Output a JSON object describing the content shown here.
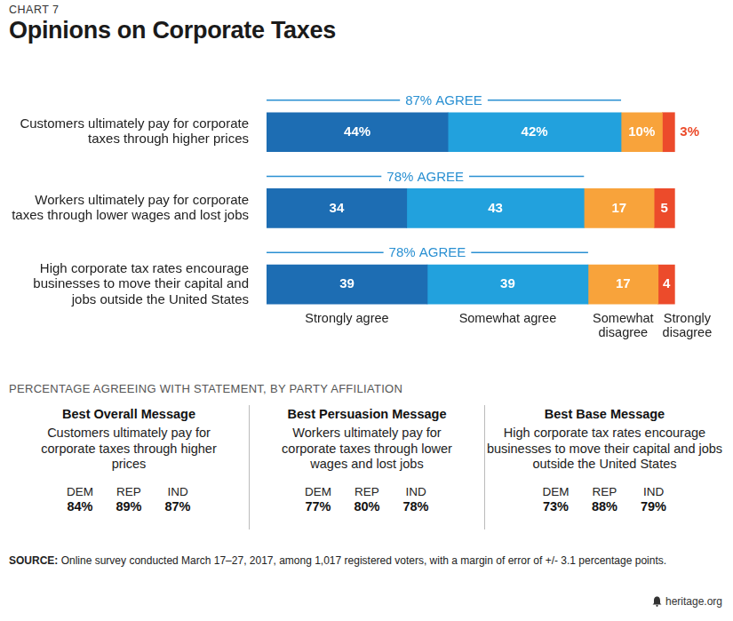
{
  "header": {
    "label": "CHART 7"
  },
  "chart_data": {
    "type": "bar",
    "orientation": "horizontal",
    "stacked": true,
    "title": "Opinions on Corporate Taxes",
    "categories": [
      "Customers ultimately pay for corporate taxes through higher prices",
      "Workers ultimately pay for corporate taxes through lower wages and lost jobs",
      "High corporate tax rates encourage businesses to move their capital and jobs outside the United States"
    ],
    "series": [
      {
        "name": "Strongly agree",
        "color": "#1d6db3",
        "values": [
          44,
          34,
          39
        ],
        "value_labels": [
          "44%",
          "34",
          "39"
        ]
      },
      {
        "name": "Somewhat agree",
        "color": "#22a1dd",
        "values": [
          42,
          43,
          39
        ],
        "value_labels": [
          "42%",
          "43",
          "39"
        ]
      },
      {
        "name": "Somewhat disagree",
        "color": "#f8a33b",
        "values": [
          10,
          17,
          17
        ],
        "value_labels": [
          "10%",
          "17",
          "17"
        ]
      },
      {
        "name": "Strongly disagree",
        "color": "#ec4b2b",
        "values": [
          3,
          5,
          4
        ],
        "value_labels": [
          "3%",
          "5",
          "4"
        ]
      }
    ],
    "annotations": [
      "87% AGREE",
      "78% AGREE",
      "78% AGREE"
    ],
    "xlim": [
      0,
      100
    ],
    "tick_labels": "y",
    "grid": false,
    "data_labels": true
  },
  "party_breakdown": {
    "title": "PERCENTAGE AGREEING WITH STATEMENT, BY PARTY AFFILIATION",
    "panels": [
      {
        "heading": "Best Overall Message",
        "statement": "Customers ultimately pay for corporate taxes through higher prices",
        "parties": [
          "DEM",
          "REP",
          "IND"
        ],
        "percentages": [
          "84%",
          "89%",
          "87%"
        ]
      },
      {
        "heading": "Best Persuasion Message",
        "statement": "Workers ultimately pay for corporate taxes through lower wages and lost jobs",
        "parties": [
          "DEM",
          "REP",
          "IND"
        ],
        "percentages": [
          "77%",
          "80%",
          "78%"
        ]
      },
      {
        "heading": "Best Base Message",
        "statement": "High corporate tax rates encourage businesses to move their capital and jobs outside the United States",
        "parties": [
          "DEM",
          "REP",
          "IND"
        ],
        "percentages": [
          "73%",
          "88%",
          "79%"
        ]
      }
    ]
  },
  "source": {
    "label": "SOURCE:",
    "text": "Online survey conducted March 17–27, 2017, among 1,017 registered voters, with a margin of error of +/- 3.1 percentage points."
  },
  "footer": {
    "site": "heritage.org"
  }
}
